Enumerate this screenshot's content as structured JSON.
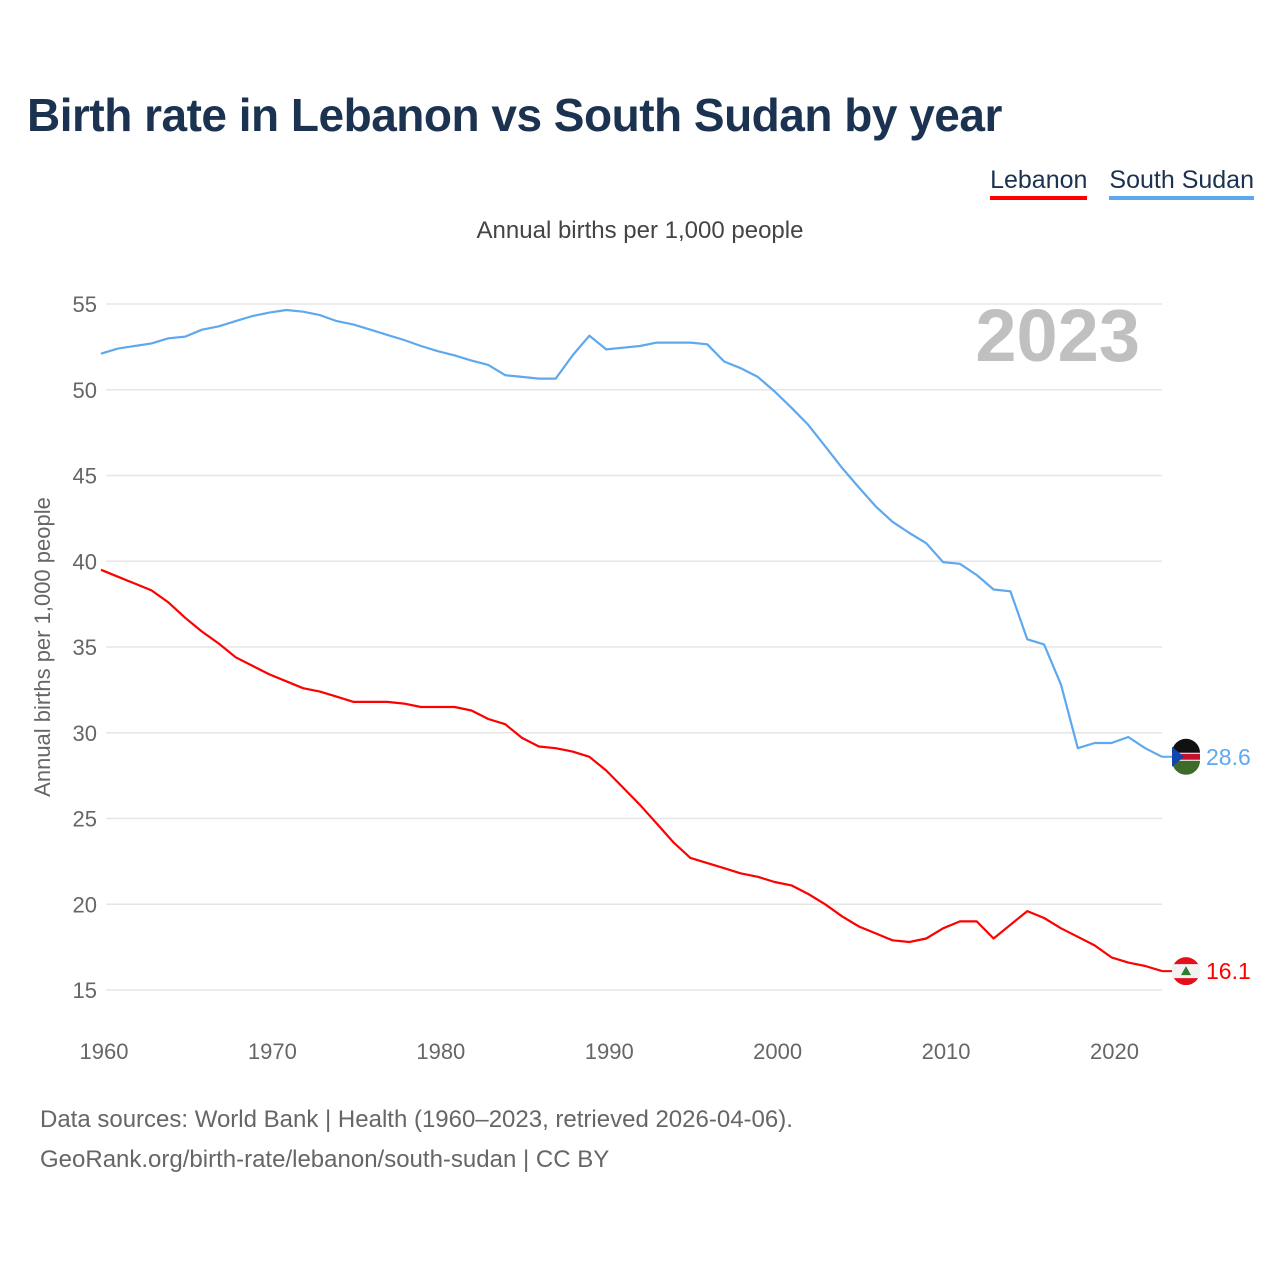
{
  "title": "Birth rate in Lebanon vs South Sudan by year",
  "legend": [
    {
      "label": "Lebanon",
      "color": "#ff0000"
    },
    {
      "label": "South Sudan",
      "color": "#5ea8ee"
    }
  ],
  "subtitle": "Annual births per 1,000 people",
  "footer": {
    "line1": "Data sources: World Bank | Health (1960–2023, retrieved 2026-04-06).",
    "line2": "GeoRank.org/birth-rate/lebanon/south-sudan | CC BY"
  },
  "chart_data": {
    "type": "line",
    "title": "Birth rate in Lebanon vs South Sudan by year",
    "xlabel": "",
    "ylabel": "Annual births per 1,000 people",
    "year_watermark": "2023",
    "xlim": [
      1960,
      2023
    ],
    "ylim": [
      15,
      55
    ],
    "xticks": [
      "1960",
      "1970",
      "1980",
      "1990",
      "2000",
      "2010",
      "2020"
    ],
    "yticks": [
      "15",
      "20",
      "25",
      "30",
      "35",
      "40",
      "45",
      "50",
      "55"
    ],
    "grid": true,
    "legend_position": "top-right",
    "x_start": 1960,
    "series": [
      {
        "name": "Lebanon",
        "color": "#ff0000",
        "end_label": "16.1",
        "values": [
          39.5,
          39.1,
          38.7,
          38.3,
          37.6,
          36.7,
          35.9,
          35.2,
          34.4,
          33.9,
          33.4,
          33.0,
          32.6,
          32.4,
          32.1,
          31.8,
          31.8,
          31.8,
          31.7,
          31.5,
          31.5,
          31.5,
          31.3,
          30.8,
          30.5,
          29.7,
          29.2,
          29.1,
          28.9,
          28.6,
          27.8,
          26.8,
          25.8,
          24.7,
          23.6,
          22.7,
          22.4,
          22.1,
          21.8,
          21.6,
          21.3,
          21.1,
          20.6,
          20.0,
          19.3,
          18.7,
          18.3,
          17.9,
          17.8,
          18.0,
          18.6,
          19.0,
          19.0,
          18.0,
          18.8,
          19.6,
          19.2,
          18.6,
          18.1,
          17.6,
          16.9,
          16.6,
          16.4,
          16.1
        ]
      },
      {
        "name": "South Sudan",
        "color": "#5ea8ee",
        "end_label": "28.6",
        "values": [
          52.1,
          52.4,
          52.55,
          52.7,
          53.0,
          53.1,
          53.5,
          53.7,
          54.0,
          54.3,
          54.5,
          54.65,
          54.55,
          54.35,
          54.0,
          53.8,
          53.5,
          53.2,
          52.9,
          52.55,
          52.25,
          52.0,
          51.7,
          51.45,
          50.85,
          50.75,
          50.65,
          50.65,
          52.0,
          53.15,
          52.35,
          52.45,
          52.55,
          52.75,
          52.75,
          52.75,
          52.65,
          51.65,
          51.25,
          50.75,
          49.9,
          48.95,
          47.95,
          46.7,
          45.45,
          44.3,
          43.2,
          42.3,
          41.65,
          41.05,
          39.95,
          39.85,
          39.2,
          38.35,
          38.25,
          35.45,
          35.15,
          32.8,
          29.1,
          29.4,
          29.4,
          29.75,
          29.1,
          28.6
        ]
      }
    ]
  }
}
